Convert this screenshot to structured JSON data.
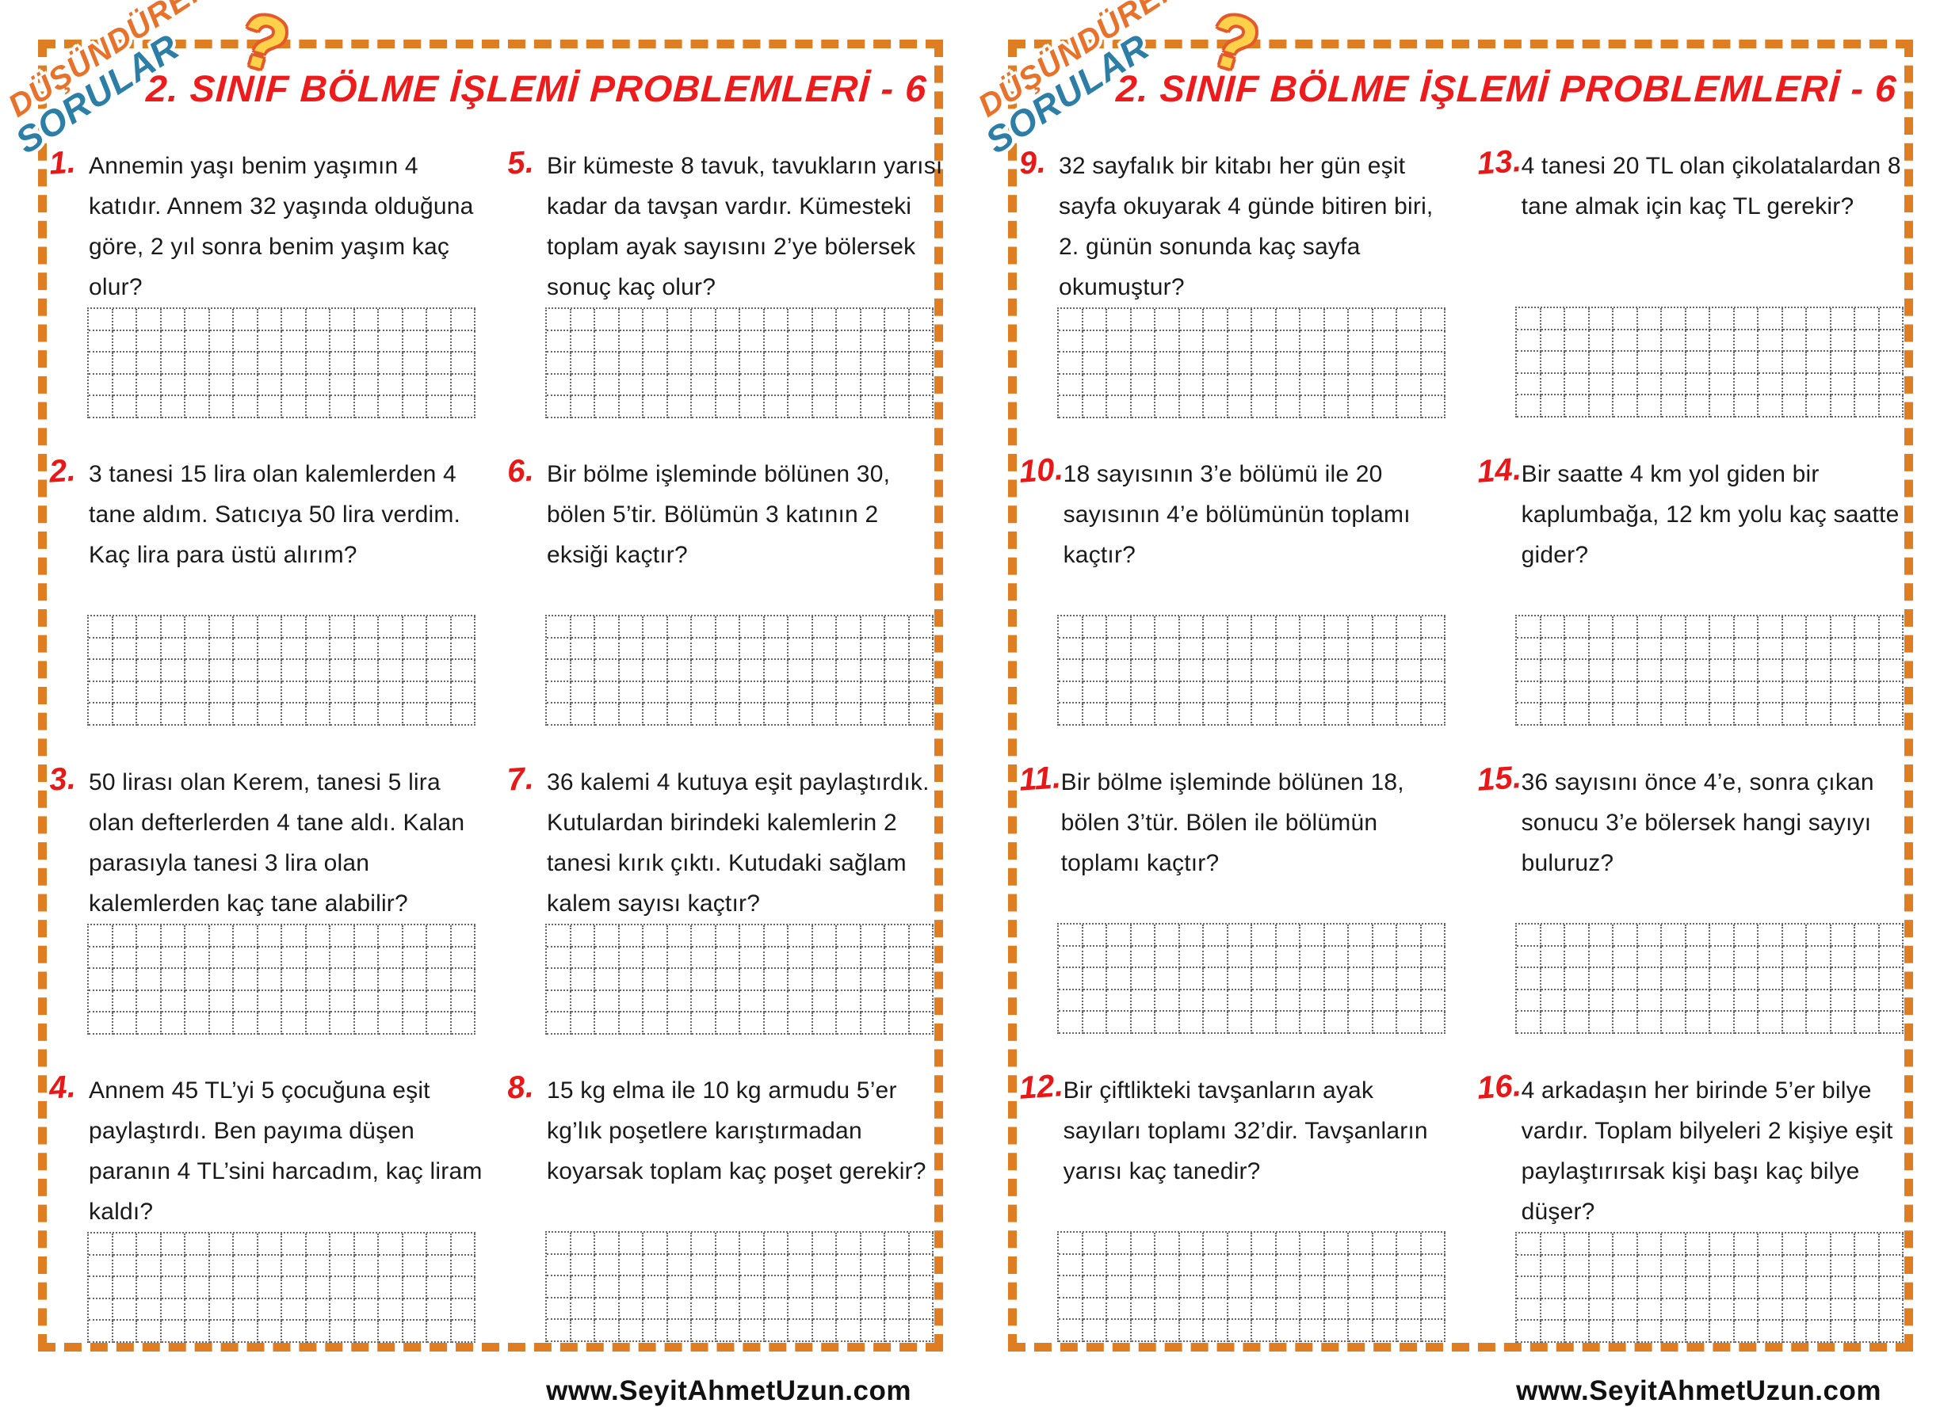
{
  "title": "2. SINIF BÖLME İŞLEMİ PROBLEMLERİ - 6",
  "logo": {
    "line1": "DÜŞÜNDÜREN",
    "line2": "SORULAR",
    "mark": "?"
  },
  "footer": {
    "text": "www.SeyitAhmetUzun.com"
  },
  "colors": {
    "border_orange": "#DF7D22",
    "title_red": "#ED1B1B",
    "number_red": "#E81818",
    "logo_orange": "#E8722A",
    "logo_blue": "#2C7EA6",
    "question_mark_yellow": "#FFD04A",
    "question_mark_outline": "#E4582A",
    "grid_line_gray": "#666666",
    "text_black": "#1A1A1A"
  },
  "pages": [
    {
      "problems": [
        {
          "number": "1.",
          "text": "Annemin yaşı benim yaşımın 4 katıdır. Annem 32 yaşında olduğuna göre, 2 yıl sonra benim yaşım kaç olur?"
        },
        {
          "number": "2.",
          "text": "3 tanesi 15 lira olan kalemlerden 4 tane aldım. Satıcıya 50 lira verdim. Kaç lira para üstü alırım?"
        },
        {
          "number": "3.",
          "text": "50 lirası olan Kerem, tanesi 5 lira olan defterlerden 4 tane aldı. Kalan parasıyla tanesi 3 lira olan kalemlerden kaç tane alabilir?"
        },
        {
          "number": "4.",
          "text": "Annem 45 TL’yi 5 çocuğuna eşit paylaştırdı. Ben payıma düşen paranın 4 TL’sini harcadım, kaç liram kaldı?"
        },
        {
          "number": "5.",
          "text": "Bir kümeste 8 tavuk, tavukların yarısı kadar da tavşan vardır. Kümesteki toplam ayak sayısını 2’ye bölersek sonuç kaç olur?"
        },
        {
          "number": "6.",
          "text": "Bir bölme işleminde bölünen 30, bölen 5’tir. Bölümün 3 katının 2 eksiği kaçtır?"
        },
        {
          "number": "7.",
          "text": "36 kalemi 4 kutuya eşit paylaştırdık. Kutulardan birindeki kalemlerin 2 tanesi kırık çıktı. Kutudaki sağlam kalem sayısı kaçtır?"
        },
        {
          "number": "8.",
          "text": "15 kg elma ile 10 kg armudu 5’er kg’lık poşetlere karıştırmadan koyarsak toplam kaç poşet gerekir?"
        }
      ]
    },
    {
      "problems": [
        {
          "number": "9.",
          "text": "32 sayfalık bir kitabı her gün eşit sayfa okuyarak 4 günde bitiren biri, 2. günün sonunda kaç sayfa okumuştur?"
        },
        {
          "number": "10.",
          "text": "18 sayısının 3’e bölümü ile 20 sayısının 4’e bölümünün toplamı kaçtır?"
        },
        {
          "number": "11.",
          "text": "Bir bölme işleminde bölünen 18, bölen 3’tür. Bölen ile bölümün toplamı kaçtır?"
        },
        {
          "number": "12.",
          "text": "Bir çiftlikteki tavşanların ayak sayıları toplamı 32’dir. Tavşanların yarısı kaç tanedir?"
        },
        {
          "number": "13.",
          "text": "4 tanesi 20 TL olan çikolatalardan 8 tane almak için kaç TL gerekir?"
        },
        {
          "number": "14.",
          "text": "Bir saatte 4 km yol giden bir kaplumbağa, 12 km yolu kaç saatte gider?"
        },
        {
          "number": "15.",
          "text": "36 sayısını önce 4’e, sonra çıkan sonucu 3’e bölersek hangi sayıyı buluruz?"
        },
        {
          "number": "16.",
          "text": "4 arkadaşın her birinde 5’er bilye vardır. Toplam bilyeleri 2 kişiye eşit paylaştırırsak kişi başı kaç bilye düşer?"
        }
      ]
    }
  ]
}
